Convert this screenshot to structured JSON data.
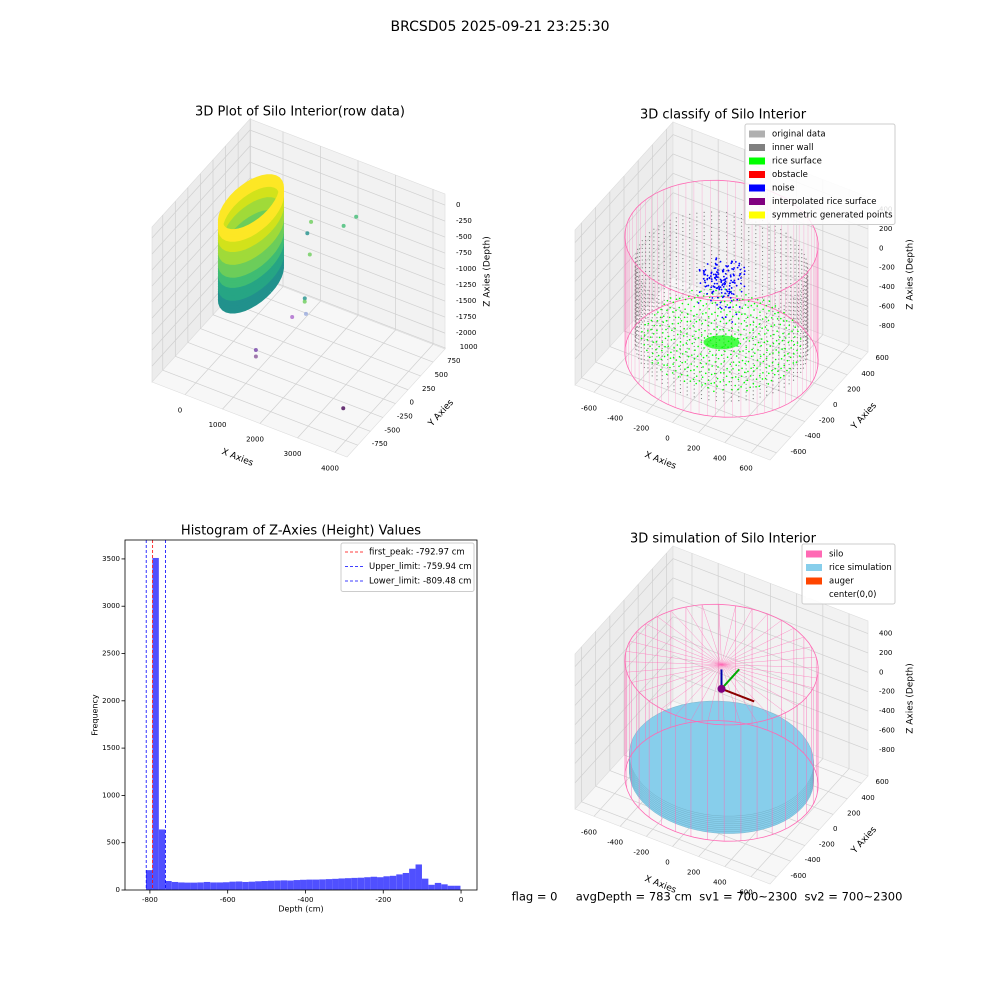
{
  "title": "BRCSD05 2025-09-21 23:25:30",
  "footer": "flag = 0     avgDepth = 783 cm  sv1 = 700~2300  sv2 = 700~2300",
  "chart_data": [
    {
      "type": "scatter3d",
      "title": "3D Plot of Silo Interior(row data)",
      "xlabel": "X Axies",
      "ylabel": "Y Axies",
      "zlabel": "Z Axies (Depth)",
      "xlim": [
        -880,
        4320
      ],
      "xticks": [
        0,
        1000,
        2000,
        3000,
        4000
      ],
      "ylim": [
        -964,
        986
      ],
      "yticks": [
        -750,
        -500,
        -250,
        0,
        250,
        500,
        750,
        1000
      ],
      "zlim": [
        -2248,
        172
      ],
      "zticks": [
        0,
        -250,
        -500,
        -750,
        -1000,
        -1250,
        -1500,
        -1750,
        -2000
      ]
    },
    {
      "type": "scatter3d",
      "title": "3D classify of Silo Interior",
      "xlabel": "X Axies",
      "ylabel": "Y Axies",
      "zlabel": "Z Axies (Depth)",
      "xlim": [
        -745,
        745
      ],
      "xticks": [
        -600,
        -400,
        -200,
        0,
        200,
        400,
        600
      ],
      "ylim": [
        -692,
        692
      ],
      "yticks": [
        -600,
        -400,
        -200,
        0,
        200,
        400,
        600
      ],
      "zlim": [
        -1070,
        530
      ],
      "zticks": [
        -800,
        -600,
        -400,
        -200,
        0,
        200,
        400
      ],
      "series": [
        {
          "name": "original data",
          "color": "#b0b0b0"
        },
        {
          "name": "inner wall",
          "color": "#808080"
        },
        {
          "name": "rice surface",
          "color": "#00ff00"
        },
        {
          "name": "obstacle",
          "color": "#ff0000"
        },
        {
          "name": "noise",
          "color": "#0000ff"
        },
        {
          "name": "interpolated rice surface",
          "color": "#800080"
        },
        {
          "name": "symmetric generated points",
          "color": "#ffff00"
        }
      ]
    },
    {
      "type": "histogram",
      "title": "Histogram of Z-Axies (Height) Values",
      "xlabel": "Depth (cm)",
      "ylabel": "Frequency",
      "color": "#5050ff",
      "xlim": [
        -864,
        41
      ],
      "xticks": [
        -800,
        -600,
        -400,
        -200,
        0
      ],
      "ylim": [
        0,
        3700
      ],
      "yticks": [
        0,
        500,
        1000,
        1500,
        2000,
        2500,
        3000,
        3500
      ],
      "bins": [
        -810,
        -793.5,
        -777,
        -760.5,
        -744,
        -727.5,
        -711,
        -694.5,
        -678,
        -661.5,
        -645,
        -628.5,
        -612,
        -595.5,
        -579,
        -562.5,
        -546,
        -529.5,
        -513,
        -496.5,
        -480,
        -463.5,
        -447,
        -430.5,
        -414,
        -397.5,
        -381,
        -364.5,
        -348,
        -331.5,
        -315,
        -298.5,
        -282,
        -265.5,
        -249,
        -232.5,
        -216,
        -199.5,
        -183,
        -166.5,
        -150,
        -133.5,
        -117,
        -100.5,
        -84,
        -67.5,
        -51,
        -34.5,
        -18,
        -1.5
      ],
      "values": [
        210,
        3510,
        640,
        95,
        85,
        80,
        78,
        78,
        80,
        85,
        80,
        80,
        82,
        88,
        90,
        85,
        88,
        92,
        95,
        98,
        100,
        102,
        100,
        105,
        108,
        110,
        110,
        112,
        115,
        118,
        122,
        125,
        128,
        130,
        135,
        140,
        135,
        145,
        150,
        165,
        180,
        225,
        270,
        120,
        55,
        75,
        60,
        45,
        45
      ],
      "lines": [
        {
          "name": "first_peak: -792.97 cm",
          "value": -792.97,
          "color": "#ff0000"
        },
        {
          "name": "Upper_limit: -759.94 cm",
          "value": -759.94,
          "color": "#0000ff"
        },
        {
          "name": "Lower_limit: -809.48 cm",
          "value": -809.48,
          "color": "#0000ff"
        }
      ]
    },
    {
      "type": "scatter3d",
      "title": "3D simulation of Silo Interior",
      "xlabel": "X Axies",
      "ylabel": "Y Axies",
      "zlabel": "Z Axies (Depth)",
      "xlim": [
        -745,
        745
      ],
      "xticks": [
        -600,
        -400,
        -200,
        0,
        200,
        400,
        600
      ],
      "ylim": [
        -692,
        692
      ],
      "yticks": [
        -600,
        -400,
        -200,
        0,
        200,
        400,
        600
      ],
      "zlim": [
        -1070,
        530
      ],
      "zticks": [
        -800,
        -600,
        -400,
        -200,
        0,
        200,
        400
      ],
      "series": [
        {
          "name": "silo",
          "color": "#ff69b4"
        },
        {
          "name": "rice simulation",
          "color": "#87ceeb"
        },
        {
          "name": "auger",
          "color": "#ff4500"
        },
        {
          "name": "center(0,0)",
          "color": "#ffffff"
        }
      ]
    }
  ]
}
